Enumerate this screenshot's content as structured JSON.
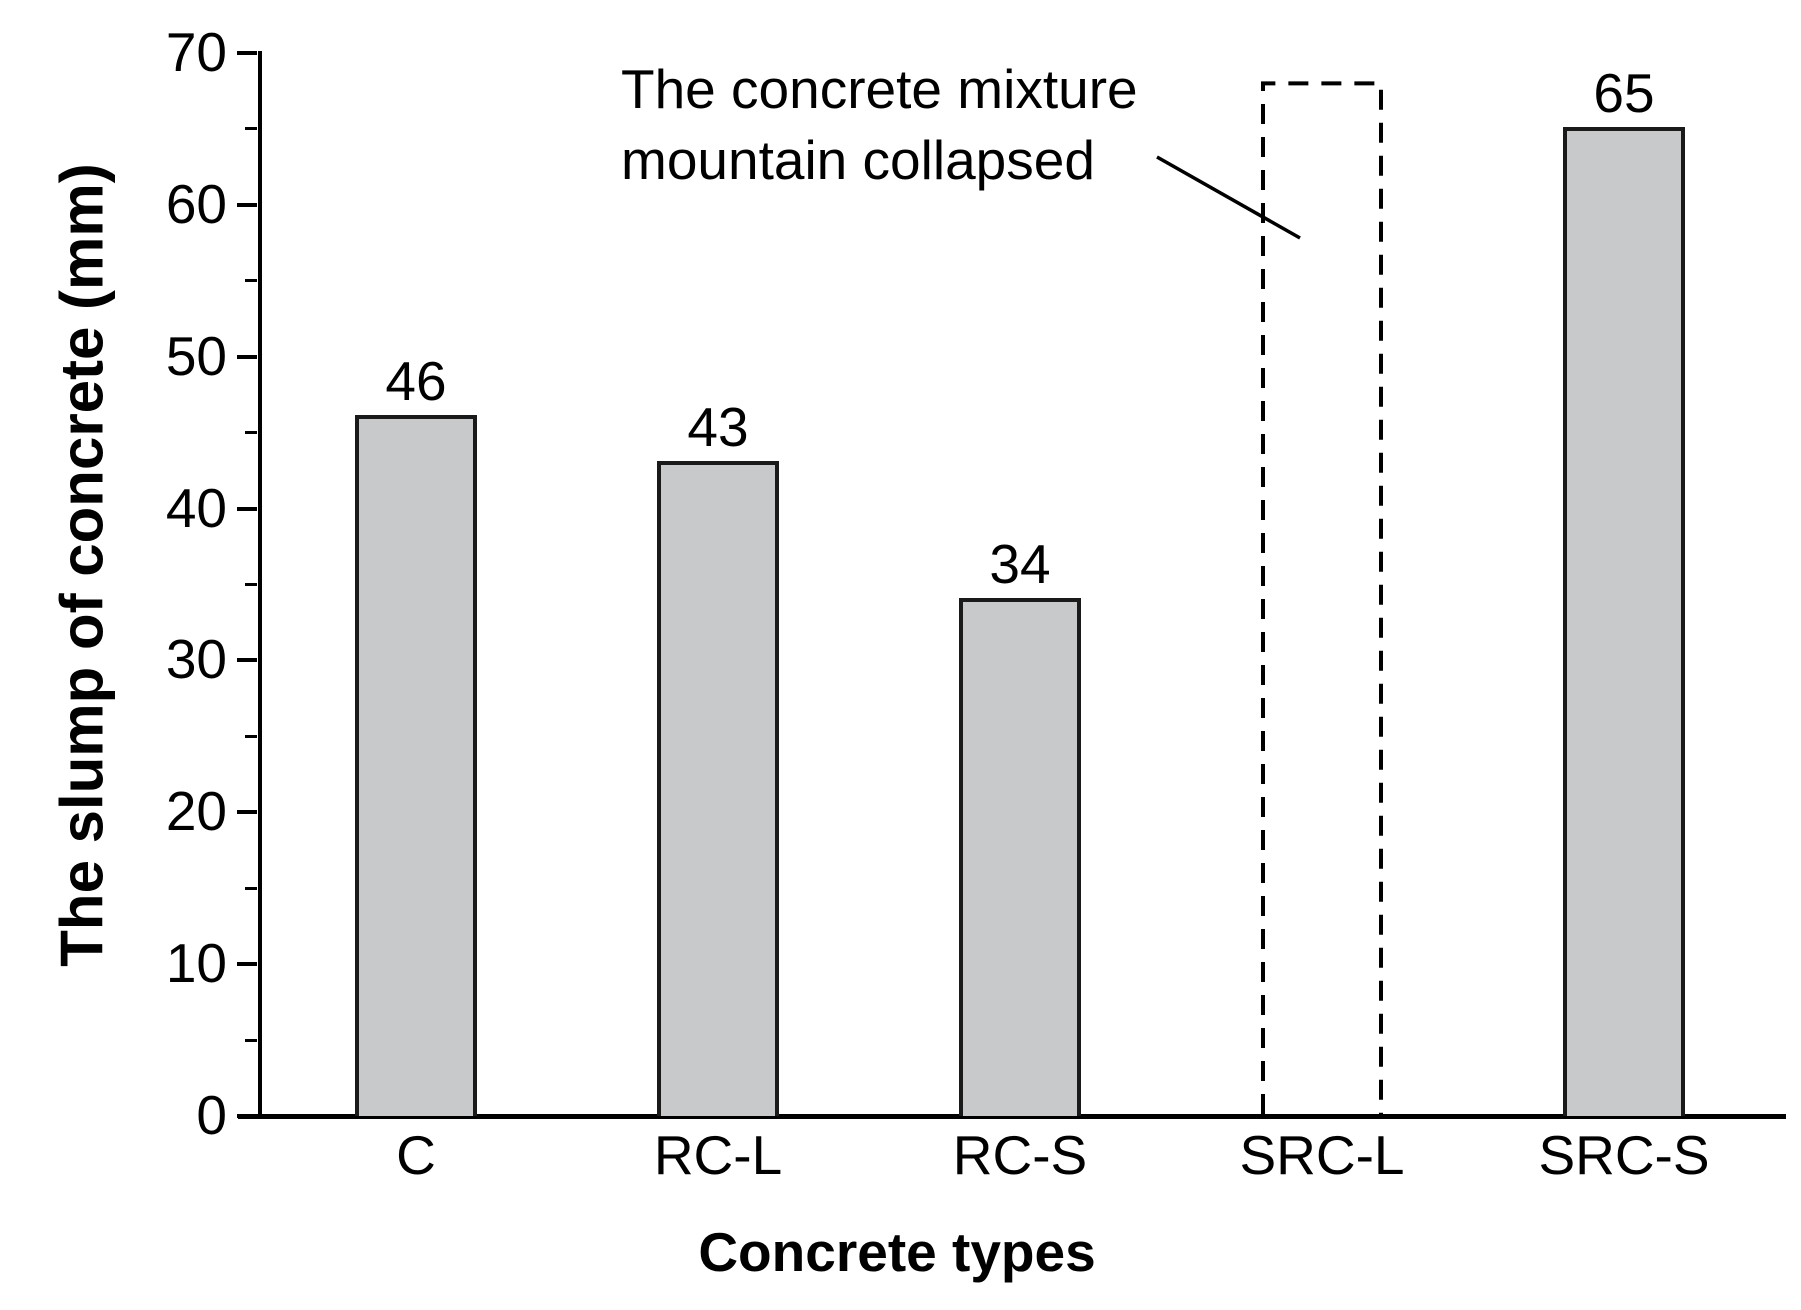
{
  "chart_data": {
    "type": "bar",
    "title": "",
    "xlabel": "Concrete types",
    "ylabel": "The slump of concrete (mm)",
    "categories": [
      "C",
      "RC-L",
      "RC-S",
      "SRC-L",
      "SRC-S"
    ],
    "values": [
      46,
      43,
      34,
      null,
      65
    ],
    "bars": [
      {
        "category": "C",
        "value": 46,
        "label": "46",
        "style": "solid"
      },
      {
        "category": "RC-L",
        "value": 43,
        "label": "43",
        "style": "solid"
      },
      {
        "category": "RC-S",
        "value": 34,
        "label": "34",
        "style": "solid"
      },
      {
        "category": "SRC-L",
        "value": 68,
        "label": "",
        "style": "dashed"
      },
      {
        "category": "SRC-S",
        "value": 65,
        "label": "65",
        "style": "solid"
      }
    ],
    "ylim": [
      0,
      70
    ],
    "yticks": [
      0,
      10,
      20,
      30,
      40,
      50,
      60,
      70
    ],
    "yminorticks": [
      5,
      15,
      25,
      35,
      45,
      55,
      65
    ],
    "grid": false,
    "legend": false,
    "annotation": {
      "line1": "The concrete mixture",
      "line2": "mountain collapsed"
    },
    "colors": {
      "bar_fill": "#c8c9ca",
      "bar_border": "#1a1a1a",
      "axis": "#000000",
      "text": "#000000"
    }
  }
}
